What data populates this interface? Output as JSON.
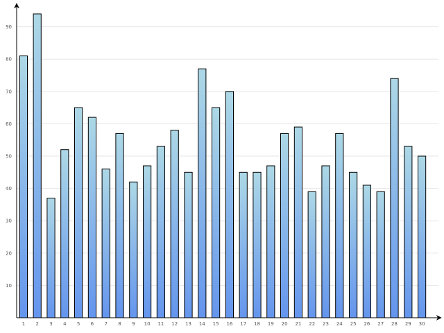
{
  "chart_data": {
    "type": "bar",
    "title": "",
    "xlabel": "",
    "ylabel": "",
    "categories": [
      "1",
      "2",
      "3",
      "4",
      "5",
      "6",
      "7",
      "8",
      "9",
      "10",
      "11",
      "12",
      "13",
      "14",
      "15",
      "16",
      "17",
      "18",
      "19",
      "20",
      "21",
      "22",
      "23",
      "24",
      "25",
      "26",
      "27",
      "28",
      "29",
      "30"
    ],
    "values": [
      81,
      94,
      37,
      52,
      65,
      62,
      46,
      57,
      42,
      47,
      53,
      58,
      45,
      77,
      65,
      70,
      45,
      45,
      47,
      57,
      59,
      39,
      47,
      57,
      45,
      41,
      39,
      74,
      53,
      50
    ],
    "ylim": [
      0,
      94
    ],
    "y_ticks": [
      "10",
      "20",
      "30",
      "40",
      "50",
      "60",
      "70",
      "80",
      "90"
    ],
    "grid": true,
    "legend": "none",
    "colors": {
      "bar_top": "#add8e6",
      "bar_bottom": "#6495ed",
      "grid": "#e6e6e6",
      "axis": "#000000"
    }
  }
}
